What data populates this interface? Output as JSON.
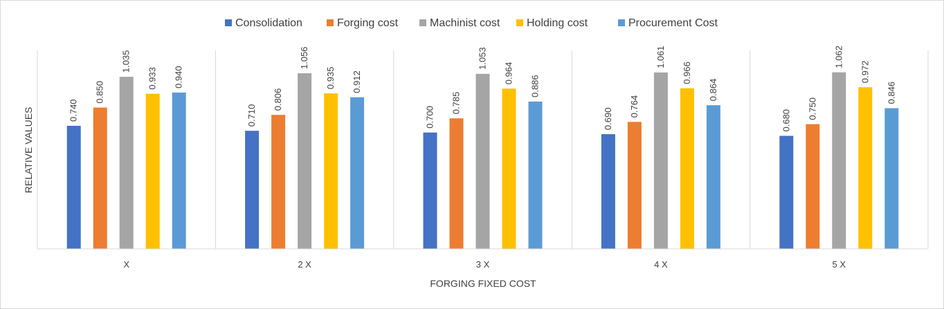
{
  "chart_data": {
    "type": "bar",
    "categories": [
      "X",
      "2 X",
      "3 X",
      "4 X",
      "5 X"
    ],
    "series": [
      {
        "name": "Consolidation",
        "color": "#4472C4",
        "values": [
          0.74,
          0.71,
          0.7,
          0.69,
          0.68
        ]
      },
      {
        "name": "Forging cost",
        "color": "#ED7D31",
        "values": [
          0.85,
          0.806,
          0.785,
          0.764,
          0.75
        ]
      },
      {
        "name": "Machinist cost",
        "color": "#A5A5A5",
        "values": [
          1.035,
          1.056,
          1.053,
          1.061,
          1.062
        ]
      },
      {
        "name": "Holding cost",
        "color": "#FFC000",
        "values": [
          0.933,
          0.935,
          0.964,
          0.966,
          0.972
        ]
      },
      {
        "name": "Procurement Cost",
        "color": "#5B9BD5",
        "values": [
          0.94,
          0.912,
          0.886,
          0.864,
          0.846
        ]
      }
    ],
    "data_labels": [
      [
        "0.740",
        "0.710",
        "0.700",
        "0.690",
        "0.680"
      ],
      [
        "0.850",
        "0.806",
        "0.785",
        "0.764",
        "0.750"
      ],
      [
        "1.035",
        "1.056",
        "1.053",
        "1.061",
        "1.062"
      ],
      [
        "0.933",
        "0.935",
        "0.964",
        "0.966",
        "0.972"
      ],
      [
        "0.940",
        "0.912",
        "0.886",
        "0.864",
        "0.846"
      ]
    ],
    "xlabel": "FORGING FIXED COST",
    "ylabel": "RELATIVE VALUES",
    "ylim": [
      0,
      1.2
    ],
    "legend_position": "top",
    "grid": false,
    "category_separators": true
  }
}
